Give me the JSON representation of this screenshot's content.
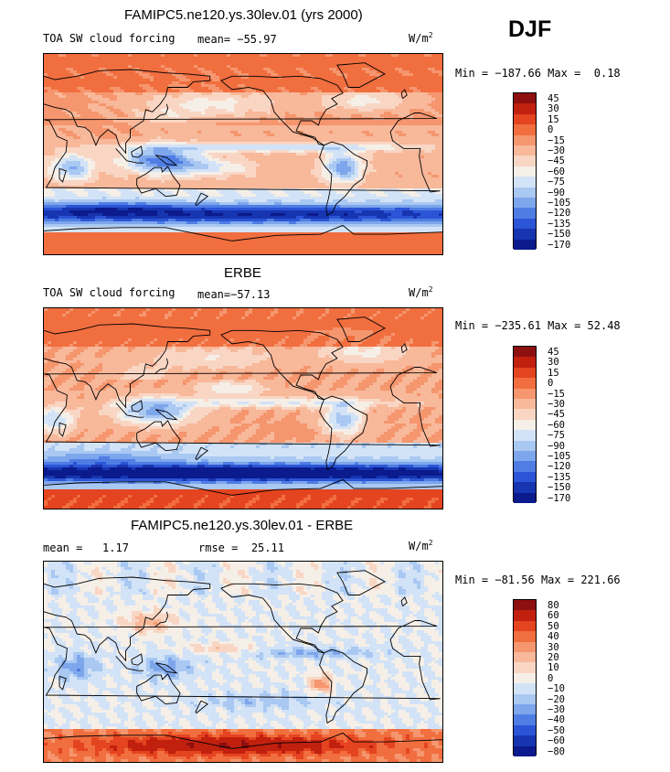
{
  "season": "DJF",
  "colors": {
    "div_low": "#0b1a8c",
    "div_mid": "#f7f5ef",
    "div_high": "#8e0f0f",
    "coast": "#000000"
  },
  "chart_data": [
    {
      "type": "heatmap",
      "title": "FAMIPC5.ne120.ys.30lev.01 (yrs 2000)",
      "variable": "TOA SW cloud forcing",
      "mean_label": "mean=",
      "mean": "−55.97",
      "units": "W/m",
      "units_sup": "2",
      "min_label": "Min =",
      "min": "−187.66",
      "max_label": "Max =",
      "max": "0.18",
      "levels": [
        "45",
        "30",
        "15",
        "0",
        "−15",
        "−30",
        "−45",
        "−60",
        "−75",
        "−90",
        "−105",
        "−120",
        "−135",
        "−150",
        "−170"
      ],
      "palette": [
        "#8e0f0f",
        "#c1200f",
        "#e4441f",
        "#f16e3f",
        "#f5966e",
        "#f8b89a",
        "#f9d6c4",
        "#f5efe7",
        "#d3e3f7",
        "#a9c8f2",
        "#7ea6ec",
        "#4f7de4",
        "#2b55d6",
        "#1735b0",
        "#0b1a8c"
      ],
      "field": "model"
    },
    {
      "type": "heatmap",
      "title": "ERBE",
      "variable": "TOA SW cloud forcing",
      "mean_label": "mean=",
      "mean": "−57.13",
      "units": "W/m",
      "units_sup": "2",
      "min_label": "Min =",
      "min": "−235.61",
      "max_label": "Max =",
      "max": "52.48",
      "levels": [
        "45",
        "30",
        "15",
        "0",
        "−15",
        "−30",
        "−45",
        "−60",
        "−75",
        "−90",
        "−105",
        "−120",
        "−135",
        "−150",
        "−170"
      ],
      "palette": [
        "#8e0f0f",
        "#c1200f",
        "#e4441f",
        "#f16e3f",
        "#f5966e",
        "#f8b89a",
        "#f9d6c4",
        "#f5efe7",
        "#d3e3f7",
        "#a9c8f2",
        "#7ea6ec",
        "#4f7de4",
        "#2b55d6",
        "#1735b0",
        "#0b1a8c"
      ],
      "field": "obs"
    },
    {
      "type": "heatmap",
      "title": "FAMIPC5.ne120.ys.30lev.01 - ERBE",
      "mean_label": "mean =",
      "mean": "1.17",
      "rmse_label": "rmse =",
      "rmse": "25.11",
      "units": "W/m",
      "units_sup": "2",
      "min_label": "Min =",
      "min": "−81.56",
      "max_label": "Max =",
      "max": "221.66",
      "levels": [
        "80",
        "60",
        "50",
        "40",
        "30",
        "20",
        "10",
        "0",
        "−10",
        "−20",
        "−30",
        "−40",
        "−50",
        "−60",
        "−80"
      ],
      "palette": [
        "#8e0f0f",
        "#c1200f",
        "#e4441f",
        "#f16e3f",
        "#f5966e",
        "#f8b89a",
        "#f9d6c4",
        "#f5efe7",
        "#d3e3f7",
        "#a9c8f2",
        "#7ea6ec",
        "#4f7de4",
        "#2b55d6",
        "#1735b0",
        "#0b1a8c"
      ],
      "field": "diff"
    }
  ]
}
